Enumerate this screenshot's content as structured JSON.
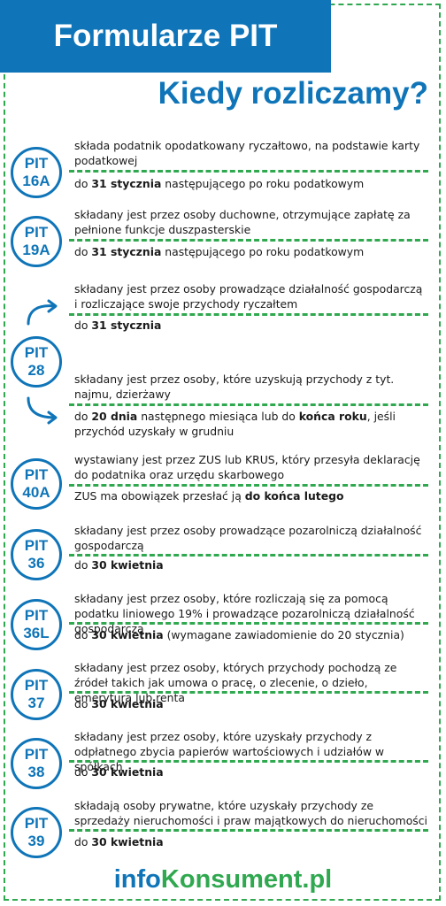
{
  "header": {
    "title": "Formularze PIT",
    "subtitle": "Kiedy rozliczamy?"
  },
  "items": [
    {
      "pit": "PIT",
      "num": "16A",
      "desc": "składa podatnik opodatkowany ryczałtowo, na podstawie karty podatkowej",
      "deadline": {
        "pre": "do ",
        "bold": "31 stycznia",
        "post": " następującego po roku podatkowym"
      }
    },
    {
      "pit": "PIT",
      "num": "19A",
      "desc": "składany jest przez osoby duchowne, otrzymujące zapłatę za pełnione funkcje duszpasterskie",
      "deadline": {
        "pre": "do ",
        "bold": "31 stycznia",
        "post": " następującego po roku podatkowym"
      }
    },
    {
      "pit": "PIT",
      "num": "28",
      "desc_a": "składany jest przez osoby prowadzące działalność gospodarczą i rozliczające swoje przychody ryczałtem",
      "deadline_a": {
        "pre": "do ",
        "bold": "31 stycznia",
        "post": ""
      },
      "desc_b": "składany jest przez osoby, które uzyskują przychody z tyt. najmu, dzierżawy",
      "deadline_b": {
        "pre": "do ",
        "bold": "20 dnia",
        "mid": " następnego miesiąca lub do ",
        "bold2": "końca roku",
        "post": ", jeśli przychód uzyskały w grudniu"
      }
    },
    {
      "pit": "PIT",
      "num": "40A",
      "desc": "wystawiany jest przez ZUS lub KRUS, który przesyła deklarację do podatnika oraz urzędu skarbowego",
      "deadline": {
        "pre": "ZUS ma obowiązek przesłać ją ",
        "bold": "do końca lutego",
        "post": ""
      }
    },
    {
      "pit": "PIT",
      "num": "36",
      "desc": "składany jest przez osoby prowadzące pozarolniczą działalność gospodarczą",
      "deadline": {
        "pre": "do ",
        "bold": "30 kwietnia",
        "post": ""
      }
    },
    {
      "pit": "PIT",
      "num": "36L",
      "desc": "składany jest przez osoby, które rozliczają się za pomocą podatku liniowego 19% i prowadzące pozarolniczą działalność gospodarczą",
      "deadline": {
        "pre": "do ",
        "bold": "30 kwietnia",
        "post": " (wymagane zawiadomienie do 20 stycznia)"
      }
    },
    {
      "pit": "PIT",
      "num": "37",
      "desc": "składany jest przez osoby, których przychody pochodzą ze źródeł takich jak umowa o pracę, o zlecenie, o dzieło, emerytura lub renta",
      "deadline": {
        "pre": "do ",
        "bold": "30 kwietnia",
        "post": ""
      }
    },
    {
      "pit": "PIT",
      "num": "38",
      "desc": "składany jest przez osoby, które uzyskały przychody z odpłatnego zbycia papierów wartościowych i udziałów w spółkach",
      "deadline": {
        "pre": "do ",
        "bold": "30 kwietnia",
        "post": ""
      }
    },
    {
      "pit": "PIT",
      "num": "39",
      "desc": "składają osoby prywatne, które uzyskały przychody ze sprzedaży nieruchomości i praw majątkowych do nieruchomości",
      "deadline": {
        "pre": "do ",
        "bold": "30 kwietnia",
        "post": ""
      }
    }
  ],
  "footer": {
    "part1": "info",
    "part2": "Konsument.pl"
  },
  "colors": {
    "blue": "#0f75b8",
    "green": "#2fa84f"
  }
}
